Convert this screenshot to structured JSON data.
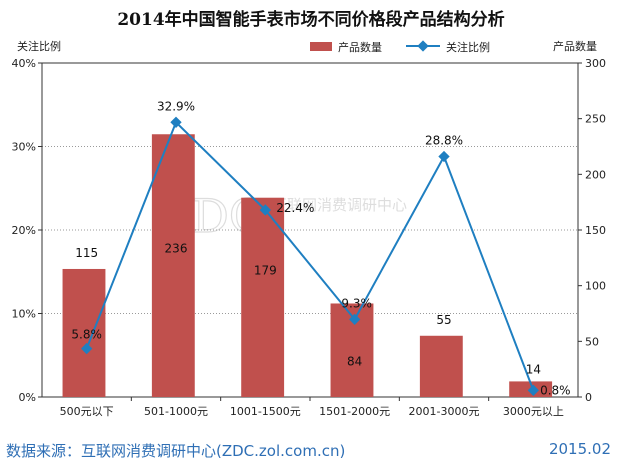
{
  "footer": {
    "source": "数据来源：互联网消费调研中心(ZDC.zol.com.cn)",
    "date": "2015.02"
  },
  "watermark": {
    "text": "ZDC",
    "subtext": "互联网消费调研中心"
  },
  "colors": {
    "bar": "#c0504d",
    "line": "#1f7fc1",
    "marker": "#1f7fc1",
    "gridline": "#9a9a9a",
    "axis": "#333333"
  },
  "chart_data": {
    "type": "bar+line",
    "title": "2014年中国智能手表市场不同价格段产品结构分析",
    "categories": [
      "500元以下",
      "501-1000元",
      "1001-1500元",
      "1501-2000元",
      "2001-3000元",
      "3000元以上"
    ],
    "series": [
      {
        "name": "产品数量",
        "type": "bar",
        "axis": "right",
        "values": [
          115,
          236,
          179,
          84,
          55,
          14
        ]
      },
      {
        "name": "关注比例",
        "type": "line",
        "axis": "left",
        "values": [
          5.8,
          32.9,
          22.4,
          9.3,
          28.8,
          0.8
        ]
      }
    ],
    "bar_labels": [
      "115",
      "236",
      "179",
      "84",
      "55",
      "14"
    ],
    "line_labels": [
      "5.8%",
      "32.9%",
      "22.4%",
      "9.3%",
      "28.8%",
      "0.8%"
    ],
    "y_left": {
      "label": "关注比例",
      "min": 0,
      "max": 40,
      "ticks": [
        "0%",
        "10%",
        "20%",
        "30%",
        "40%"
      ]
    },
    "y_right": {
      "label": "产品数量",
      "min": 0,
      "max": 300,
      "ticks": [
        "0",
        "50",
        "100",
        "150",
        "200",
        "250",
        "300"
      ]
    },
    "legend": [
      "产品数量",
      "关注比例"
    ],
    "legend_position": "top-right",
    "grid": "horizontal dotted"
  }
}
